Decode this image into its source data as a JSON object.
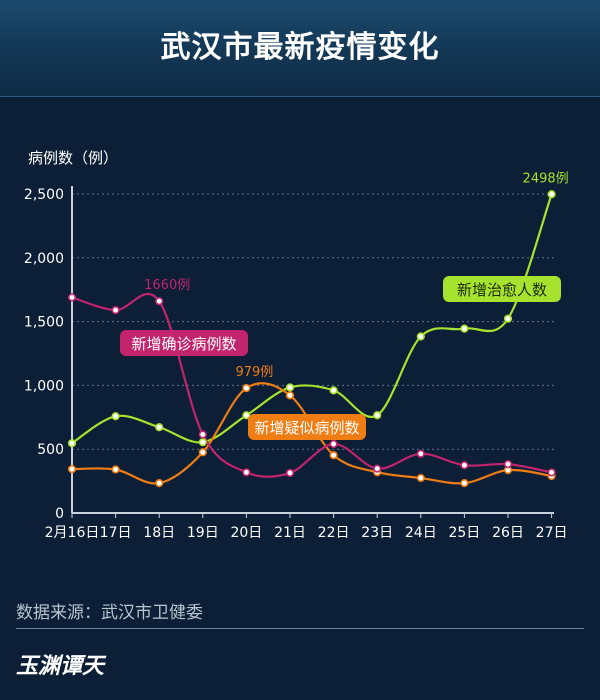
{
  "title": "武汉市最新疫情变化",
  "source": "数据来源：武汉市卫健委",
  "logo_text": "玉渊谭天",
  "chart_data": {
    "type": "line",
    "ylabel": "病例数（例）",
    "ylim": [
      0,
      2500
    ],
    "yticks": [
      0,
      500,
      1000,
      1500,
      2000,
      2500
    ],
    "ytick_labels": [
      "0",
      "500",
      "1,000",
      "1,500",
      "2,000",
      "2,500"
    ],
    "categories": [
      "2月16日",
      "17日",
      "18日",
      "19日",
      "20日",
      "21日",
      "22日",
      "23日",
      "24日",
      "25日",
      "26日",
      "27日"
    ],
    "grid": "horizontal dotted",
    "series": [
      {
        "name": "新增确诊病例数",
        "color": "#c2246e",
        "values": [
          1690,
          1590,
          1660,
          615,
          319,
          314,
          541,
          348,
          464,
          374,
          383,
          318
        ],
        "annotation": "1660例",
        "annotation_index": 2
      },
      {
        "name": "新增疑似病例数",
        "color": "#f07d14",
        "values": [
          344,
          341,
          234,
          476,
          979,
          922,
          453,
          320,
          274,
          234,
          336,
          290
        ],
        "annotation": "979例",
        "annotation_index": 4
      },
      {
        "name": "新增治愈人数",
        "color": "#a6e22e",
        "values": [
          547,
          758,
          672,
          555,
          766,
          984,
          961,
          766,
          1383,
          1445,
          1523,
          2498
        ],
        "annotation": "2498例",
        "annotation_index": 11
      }
    ]
  }
}
